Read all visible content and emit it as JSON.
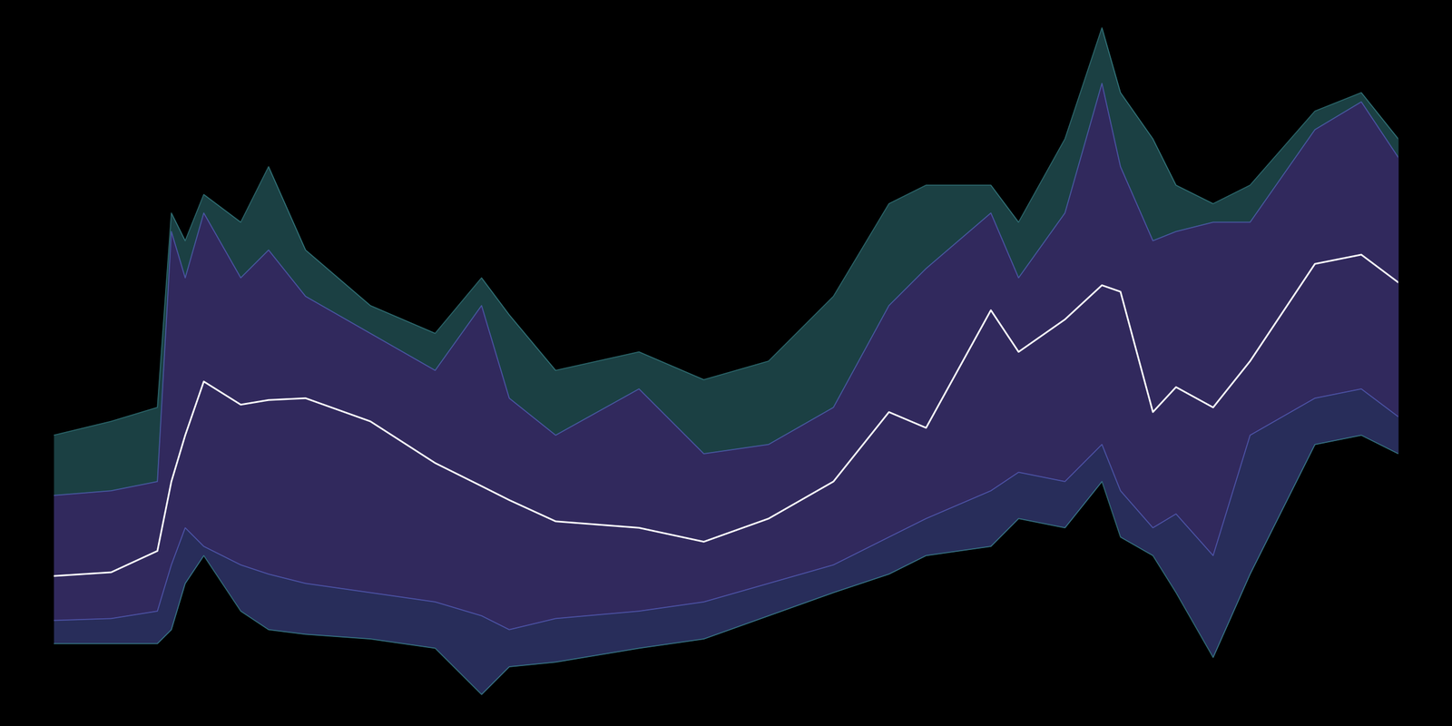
{
  "chart_data": {
    "type": "line",
    "x": [
      0,
      4.27,
      7.71,
      8.75,
      9.78,
      11.16,
      13.91,
      15.98,
      18.73,
      23.55,
      28.37,
      31.82,
      33.88,
      37.33,
      43.53,
      48.35,
      53.17,
      57.99,
      62.12,
      64.88,
      69.7,
      71.76,
      75.21,
      77.96,
      79.34,
      81.75,
      83.47,
      86.23,
      88.98,
      93.8,
      97.25,
      100
    ],
    "series": [
      {
        "color": "#3d8f96",
        "values": [
          40.05,
          41.96,
          43.88,
          70.66,
          66.84,
          73.21,
          69.39,
          77.04,
          65.56,
          57.91,
          54.08,
          61.73,
          56.63,
          48.98,
          51.53,
          47.7,
          50.26,
          59.18,
          71.94,
          74.49,
          74.49,
          69.39,
          80.87,
          96.17,
          87.24,
          80.87,
          74.49,
          71.94,
          74.49,
          84.69,
          87.24,
          80.87
        ]
      },
      {
        "color": "#5a66c8",
        "values": [
          31.76,
          32.4,
          33.67,
          68.11,
          61.73,
          70.66,
          61.73,
          65.56,
          59.18,
          54.08,
          48.98,
          57.91,
          45.15,
          40.05,
          46.43,
          37.5,
          38.78,
          43.88,
          57.91,
          63.01,
          70.66,
          61.73,
          70.66,
          88.52,
          77.04,
          66.84,
          68.11,
          69.39,
          69.39,
          82.14,
          85.97,
          78.32
        ]
      },
      {
        "color": "#ffffff",
        "values": [
          20.66,
          21.17,
          24.11,
          33.67,
          40.05,
          47.45,
          44.26,
          44.9,
          45.15,
          41.96,
          36.22,
          33.04,
          31.12,
          28.19,
          27.3,
          25.38,
          28.57,
          33.67,
          43.24,
          41.07,
          57.27,
          51.53,
          56.0,
          60.71,
          59.82,
          43.24,
          46.68,
          43.88,
          50.26,
          63.65,
          64.92,
          61.1
        ]
      },
      {
        "color": "#5a66c8",
        "values": [
          14.54,
          14.8,
          15.82,
          22.19,
          27.3,
          24.74,
          22.19,
          20.92,
          19.64,
          18.37,
          17.09,
          15.18,
          13.27,
          14.8,
          15.82,
          17.09,
          19.64,
          22.19,
          26.02,
          28.57,
          32.4,
          34.95,
          33.67,
          38.78,
          32.4,
          27.3,
          29.21,
          23.47,
          40.05,
          45.15,
          46.43,
          42.6
        ]
      },
      {
        "color": "#3d8f96",
        "values": [
          11.35,
          11.35,
          11.35,
          13.27,
          19.64,
          23.47,
          15.82,
          13.27,
          12.63,
          11.99,
          10.71,
          4.34,
          8.16,
          8.8,
          10.71,
          11.99,
          15.18,
          18.37,
          20.92,
          23.47,
          24.74,
          28.57,
          27.3,
          33.67,
          26.02,
          23.47,
          18.37,
          9.44,
          20.92,
          38.77,
          40.05,
          37.5
        ]
      }
    ],
    "xlim": [
      0,
      100
    ],
    "ylim": [
      0,
      100
    ],
    "xticks": [],
    "yticks": [],
    "tick_labels": false,
    "grid": false
  }
}
